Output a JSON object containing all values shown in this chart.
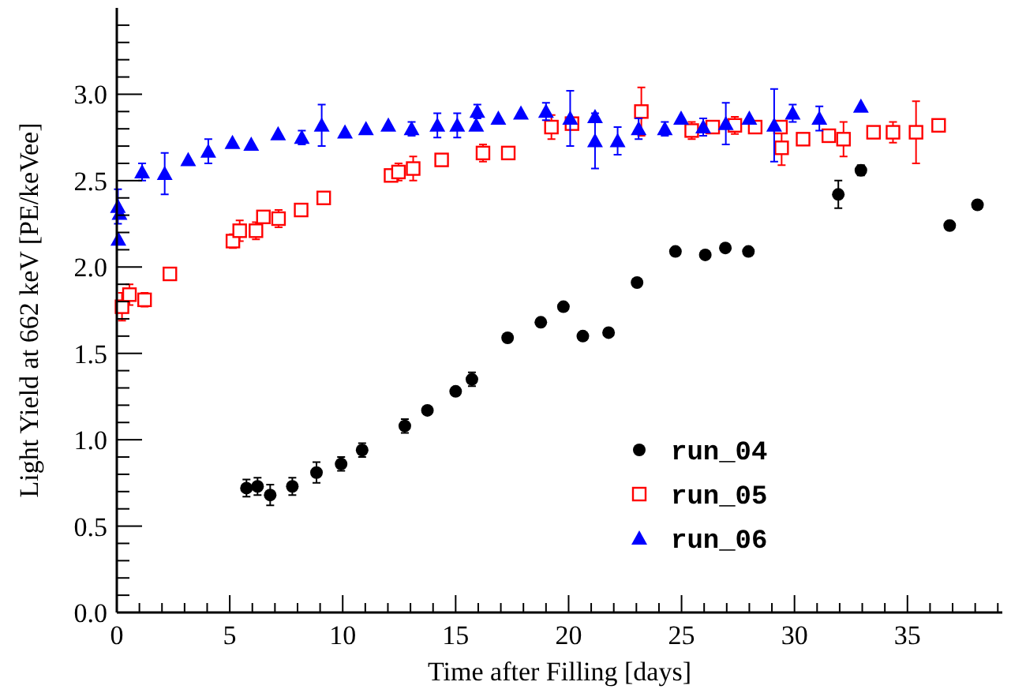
{
  "chart_data": {
    "type": "scatter",
    "xlabel": "Time after Filling [days]",
    "ylabel": "Light Yield at 662 keV [PE/keVee]",
    "xlim": [
      0,
      39.2
    ],
    "ylim": [
      0,
      3.5
    ],
    "xticks": [
      {
        "value": 0,
        "label": "0"
      },
      {
        "value": 1,
        "label": null
      },
      {
        "value": 2,
        "label": null
      },
      {
        "value": 3,
        "label": null
      },
      {
        "value": 4,
        "label": null
      },
      {
        "value": 5,
        "label": "5"
      },
      {
        "value": 6,
        "label": null
      },
      {
        "value": 7,
        "label": null
      },
      {
        "value": 8,
        "label": null
      },
      {
        "value": 9,
        "label": null
      },
      {
        "value": 10,
        "label": "10"
      },
      {
        "value": 11,
        "label": null
      },
      {
        "value": 12,
        "label": null
      },
      {
        "value": 13,
        "label": null
      },
      {
        "value": 14,
        "label": null
      },
      {
        "value": 15,
        "label": "15"
      },
      {
        "value": 16,
        "label": null
      },
      {
        "value": 17,
        "label": null
      },
      {
        "value": 18,
        "label": null
      },
      {
        "value": 19,
        "label": null
      },
      {
        "value": 20,
        "label": "20"
      },
      {
        "value": 21,
        "label": null
      },
      {
        "value": 22,
        "label": null
      },
      {
        "value": 23,
        "label": null
      },
      {
        "value": 24,
        "label": null
      },
      {
        "value": 25,
        "label": "25"
      },
      {
        "value": 26,
        "label": null
      },
      {
        "value": 27,
        "label": null
      },
      {
        "value": 28,
        "label": null
      },
      {
        "value": 29,
        "label": null
      },
      {
        "value": 30,
        "label": "30"
      },
      {
        "value": 31,
        "label": null
      },
      {
        "value": 32,
        "label": null
      },
      {
        "value": 33,
        "label": null
      },
      {
        "value": 34,
        "label": null
      },
      {
        "value": 35,
        "label": "35"
      },
      {
        "value": 36,
        "label": null
      },
      {
        "value": 37,
        "label": null
      },
      {
        "value": 38,
        "label": null
      },
      {
        "value": 39,
        "label": null
      }
    ],
    "yticks": [
      {
        "value": 0,
        "label": "0.0"
      },
      {
        "value": 0.1,
        "label": null
      },
      {
        "value": 0.2,
        "label": null
      },
      {
        "value": 0.3,
        "label": null
      },
      {
        "value": 0.4,
        "label": null
      },
      {
        "value": 0.5,
        "label": "0.5"
      },
      {
        "value": 0.6,
        "label": null
      },
      {
        "value": 0.7,
        "label": null
      },
      {
        "value": 0.8,
        "label": null
      },
      {
        "value": 0.9,
        "label": null
      },
      {
        "value": 1,
        "label": "1.0"
      },
      {
        "value": 1.1,
        "label": null
      },
      {
        "value": 1.2,
        "label": null
      },
      {
        "value": 1.3,
        "label": null
      },
      {
        "value": 1.4,
        "label": null
      },
      {
        "value": 1.5,
        "label": "1.5"
      },
      {
        "value": 1.6,
        "label": null
      },
      {
        "value": 1.7,
        "label": null
      },
      {
        "value": 1.8,
        "label": null
      },
      {
        "value": 1.9,
        "label": null
      },
      {
        "value": 2,
        "label": "2.0"
      },
      {
        "value": 2.1,
        "label": null
      },
      {
        "value": 2.2,
        "label": null
      },
      {
        "value": 2.3,
        "label": null
      },
      {
        "value": 2.4,
        "label": null
      },
      {
        "value": 2.5,
        "label": "2.5"
      },
      {
        "value": 2.6,
        "label": null
      },
      {
        "value": 2.7,
        "label": null
      },
      {
        "value": 2.8,
        "label": null
      },
      {
        "value": 2.9,
        "label": null
      },
      {
        "value": 3,
        "label": "3.0"
      },
      {
        "value": 3.1,
        "label": null
      },
      {
        "value": 3.2,
        "label": null
      },
      {
        "value": 3.3,
        "label": null
      },
      {
        "value": 3.4,
        "label": null
      }
    ],
    "grid": false,
    "legend": "bottom right",
    "series": [
      {
        "name": "run_04",
        "color": "#000000",
        "marker": "circle",
        "x": [
          5.74,
          6.23,
          6.79,
          7.77,
          8.84,
          9.93,
          10.86,
          12.75,
          13.75,
          15.0,
          15.72,
          17.3,
          18.77,
          19.77,
          20.63,
          21.77,
          23.03,
          24.73,
          26.05,
          26.94,
          27.96,
          31.94,
          32.94,
          36.87,
          38.1
        ],
        "values": [
          0.72,
          0.73,
          0.68,
          0.73,
          0.81,
          0.86,
          0.94,
          1.08,
          1.17,
          1.28,
          1.35,
          1.59,
          1.68,
          1.77,
          1.6,
          1.62,
          1.91,
          2.09,
          2.07,
          2.11,
          2.09,
          2.42,
          2.56,
          2.24,
          2.36
        ],
        "errors": [
          0.05,
          0.05,
          0.06,
          0.05,
          0.06,
          0.04,
          0.04,
          0.04,
          null,
          null,
          0.04,
          null,
          null,
          null,
          null,
          null,
          null,
          null,
          null,
          null,
          null,
          0.08,
          0.03,
          null,
          null
        ]
      },
      {
        "name": "run_05",
        "color": "#ff0000",
        "marker": "square",
        "x": [
          0.23,
          0.56,
          1.23,
          2.35,
          5.14,
          5.44,
          6.16,
          6.49,
          7.16,
          8.16,
          9.16,
          12.14,
          12.47,
          13.12,
          14.38,
          16.21,
          17.33,
          19.24,
          20.15,
          23.22,
          25.45,
          26.38,
          27.36,
          28.26,
          29.38,
          29.43,
          30.38,
          31.52,
          32.17,
          33.5,
          34.36,
          35.38,
          36.38
        ],
        "values": [
          1.77,
          1.84,
          1.81,
          1.96,
          2.15,
          2.21,
          2.21,
          2.29,
          2.28,
          2.33,
          2.4,
          2.53,
          2.55,
          2.57,
          2.62,
          2.66,
          2.66,
          2.81,
          2.83,
          2.9,
          2.79,
          2.81,
          2.82,
          2.81,
          2.81,
          2.69,
          2.74,
          2.76,
          2.74,
          2.78,
          2.78,
          2.78,
          2.82
        ],
        "errors": [
          0.08,
          0.06,
          0.04,
          null,
          0.04,
          0.06,
          0.05,
          null,
          0.05,
          null,
          null,
          null,
          0.05,
          0.07,
          null,
          0.05,
          null,
          0.07,
          null,
          0.14,
          0.05,
          null,
          0.05,
          null,
          null,
          0.1,
          null,
          null,
          0.1,
          null,
          0.06,
          0.18,
          null
        ]
      },
      {
        "name": "run_06",
        "color": "#0000ff",
        "marker": "triangle",
        "x": [
          0.05,
          0.12,
          0.07,
          1.12,
          2.12,
          3.16,
          4.05,
          5.12,
          5.95,
          7.14,
          8.19,
          9.07,
          10.1,
          11.03,
          12.02,
          13.05,
          14.19,
          15.07,
          15.91,
          15.96,
          16.89,
          17.89,
          19.0,
          20.07,
          21.17,
          21.17,
          22.17,
          23.1,
          24.26,
          24.98,
          25.96,
          26.96,
          28.0,
          29.1,
          29.92,
          31.1,
          32.94
        ],
        "values": [
          2.35,
          2.31,
          2.16,
          2.55,
          2.54,
          2.62,
          2.67,
          2.72,
          2.71,
          2.77,
          2.75,
          2.82,
          2.78,
          2.8,
          2.82,
          2.8,
          2.82,
          2.82,
          2.82,
          2.9,
          2.86,
          2.89,
          2.9,
          2.86,
          2.87,
          2.73,
          2.73,
          2.8,
          2.8,
          2.86,
          2.81,
          2.83,
          2.86,
          2.82,
          2.89,
          2.86,
          2.93
        ],
        "errors": [
          0.1,
          null,
          null,
          0.05,
          0.12,
          null,
          0.07,
          null,
          null,
          null,
          0.04,
          0.12,
          null,
          null,
          null,
          0.04,
          0.07,
          0.07,
          null,
          0.04,
          null,
          null,
          0.05,
          0.16,
          null,
          0.16,
          0.08,
          0.06,
          0.04,
          null,
          0.05,
          0.12,
          null,
          0.21,
          0.05,
          0.07,
          null
        ]
      }
    ]
  }
}
